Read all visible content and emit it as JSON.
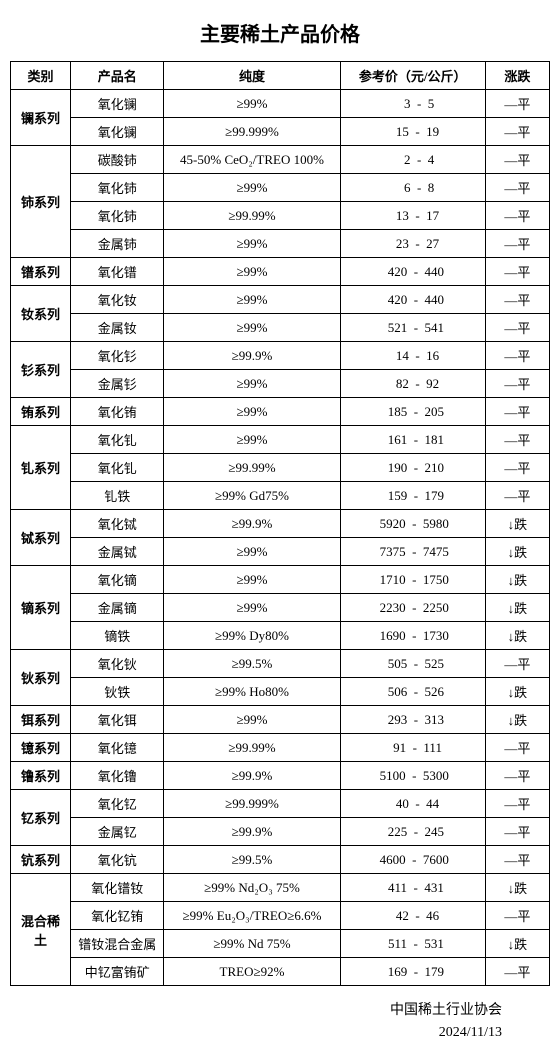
{
  "title": "主要稀土产品价格",
  "headers": {
    "category": "类别",
    "product": "产品名",
    "purity": "纯度",
    "price": "参考价（元/公斤）",
    "trend": "涨跌"
  },
  "trend_labels": {
    "flat": "—平",
    "down": "↓跌"
  },
  "groups": [
    {
      "category": "镧系列",
      "rows": [
        {
          "product": "氧化镧",
          "purity": "≥99%",
          "lo": "3",
          "hi": "5",
          "trend": "flat"
        },
        {
          "product": "氧化镧",
          "purity": "≥99.999%",
          "lo": "15",
          "hi": "19",
          "trend": "flat"
        }
      ]
    },
    {
      "category": "铈系列",
      "rows": [
        {
          "product": "碳酸铈",
          "purity": "45-50% CeO₂/TREO 100%",
          "lo": "2",
          "hi": "4",
          "trend": "flat"
        },
        {
          "product": "氧化铈",
          "purity": "≥99%",
          "lo": "6",
          "hi": "8",
          "trend": "flat"
        },
        {
          "product": "氧化铈",
          "purity": "≥99.99%",
          "lo": "13",
          "hi": "17",
          "trend": "flat"
        },
        {
          "product": "金属铈",
          "purity": "≥99%",
          "lo": "23",
          "hi": "27",
          "trend": "flat"
        }
      ]
    },
    {
      "category": "镨系列",
      "rows": [
        {
          "product": "氧化镨",
          "purity": "≥99%",
          "lo": "420",
          "hi": "440",
          "trend": "flat"
        }
      ]
    },
    {
      "category": "钕系列",
      "rows": [
        {
          "product": "氧化钕",
          "purity": "≥99%",
          "lo": "420",
          "hi": "440",
          "trend": "flat"
        },
        {
          "product": "金属钕",
          "purity": "≥99%",
          "lo": "521",
          "hi": "541",
          "trend": "flat"
        }
      ]
    },
    {
      "category": "钐系列",
      "rows": [
        {
          "product": "氧化钐",
          "purity": "≥99.9%",
          "lo": "14",
          "hi": "16",
          "trend": "flat"
        },
        {
          "product": "金属钐",
          "purity": "≥99%",
          "lo": "82",
          "hi": "92",
          "trend": "flat"
        }
      ]
    },
    {
      "category": "铕系列",
      "rows": [
        {
          "product": "氧化铕",
          "purity": "≥99%",
          "lo": "185",
          "hi": "205",
          "trend": "flat"
        }
      ]
    },
    {
      "category": "钆系列",
      "rows": [
        {
          "product": "氧化钆",
          "purity": "≥99%",
          "lo": "161",
          "hi": "181",
          "trend": "flat"
        },
        {
          "product": "氧化钆",
          "purity": "≥99.99%",
          "lo": "190",
          "hi": "210",
          "trend": "flat"
        },
        {
          "product": "钆铁",
          "purity": "≥99% Gd75%",
          "lo": "159",
          "hi": "179",
          "trend": "flat"
        }
      ]
    },
    {
      "category": "铽系列",
      "rows": [
        {
          "product": "氧化铽",
          "purity": "≥99.9%",
          "lo": "5920",
          "hi": "5980",
          "trend": "down"
        },
        {
          "product": "金属铽",
          "purity": "≥99%",
          "lo": "7375",
          "hi": "7475",
          "trend": "down"
        }
      ]
    },
    {
      "category": "镝系列",
      "rows": [
        {
          "product": "氧化镝",
          "purity": "≥99%",
          "lo": "1710",
          "hi": "1750",
          "trend": "down"
        },
        {
          "product": "金属镝",
          "purity": "≥99%",
          "lo": "2230",
          "hi": "2250",
          "trend": "down"
        },
        {
          "product": "镝铁",
          "purity": "≥99% Dy80%",
          "lo": "1690",
          "hi": "1730",
          "trend": "down"
        }
      ]
    },
    {
      "category": "钬系列",
      "rows": [
        {
          "product": "氧化钬",
          "purity": "≥99.5%",
          "lo": "505",
          "hi": "525",
          "trend": "flat"
        },
        {
          "product": "钬铁",
          "purity": "≥99% Ho80%",
          "lo": "506",
          "hi": "526",
          "trend": "down"
        }
      ]
    },
    {
      "category": "铒系列",
      "rows": [
        {
          "product": "氧化铒",
          "purity": "≥99%",
          "lo": "293",
          "hi": "313",
          "trend": "down"
        }
      ]
    },
    {
      "category": "镱系列",
      "rows": [
        {
          "product": "氧化镱",
          "purity": "≥99.99%",
          "lo": "91",
          "hi": "111",
          "trend": "flat"
        }
      ]
    },
    {
      "category": "镥系列",
      "rows": [
        {
          "product": "氧化镥",
          "purity": "≥99.9%",
          "lo": "5100",
          "hi": "5300",
          "trend": "flat"
        }
      ]
    },
    {
      "category": "钇系列",
      "rows": [
        {
          "product": "氧化钇",
          "purity": "≥99.999%",
          "lo": "40",
          "hi": "44",
          "trend": "flat"
        },
        {
          "product": "金属钇",
          "purity": "≥99.9%",
          "lo": "225",
          "hi": "245",
          "trend": "flat"
        }
      ]
    },
    {
      "category": "钪系列",
      "rows": [
        {
          "product": "氧化钪",
          "purity": "≥99.5%",
          "lo": "4600",
          "hi": "7600",
          "trend": "flat"
        }
      ]
    },
    {
      "category": "混合稀土",
      "rows": [
        {
          "product": "氧化镨钕",
          "purity": "≥99%  Nd₂O₃  75%",
          "lo": "411",
          "hi": "431",
          "trend": "down"
        },
        {
          "product": "氧化钇铕",
          "purity": "≥99% Eu₂O₃/TREO≥6.6%",
          "lo": "42",
          "hi": "46",
          "trend": "flat"
        },
        {
          "product": "镨钕混合金属",
          "purity": "≥99% Nd 75%",
          "lo": "511",
          "hi": "531",
          "trend": "down"
        },
        {
          "product": "中钇富铕矿",
          "purity": "TREO≥92%",
          "lo": "169",
          "hi": "179",
          "trend": "flat"
        }
      ]
    }
  ],
  "footer": {
    "org": "中国稀土行业协会",
    "date": "2024/11/13"
  }
}
